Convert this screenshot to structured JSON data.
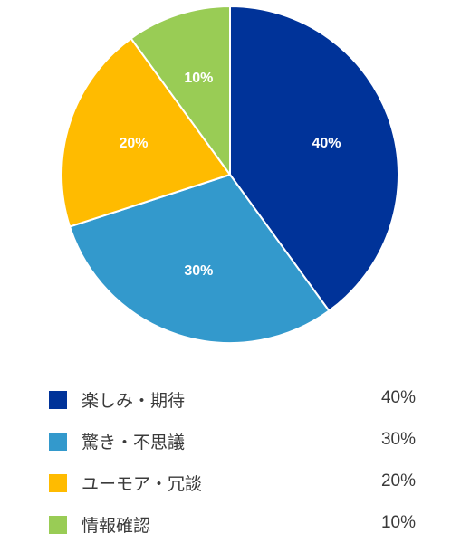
{
  "chart_data": {
    "type": "pie",
    "categories": [
      "楽しみ・期待",
      "驚き・不思議",
      "ユーモア・冗談",
      "情報確認"
    ],
    "values": [
      40,
      30,
      20,
      10
    ],
    "labels": [
      "40%",
      "30%",
      "20%",
      "10%"
    ],
    "colors": [
      "#003399",
      "#3399CC",
      "#FFBB00",
      "#99CC55"
    ],
    "legend_position": "bottom"
  },
  "legend": {
    "items": [
      {
        "label": "楽しみ・期待",
        "value": "40%",
        "color": "#003399"
      },
      {
        "label": "驚き・不思議",
        "value": "30%",
        "color": "#3399CC"
      },
      {
        "label": "ユーモア・冗談",
        "value": "20%",
        "color": "#FFBB00"
      },
      {
        "label": "情報確認",
        "value": "10%",
        "color": "#99CC55"
      }
    ]
  }
}
